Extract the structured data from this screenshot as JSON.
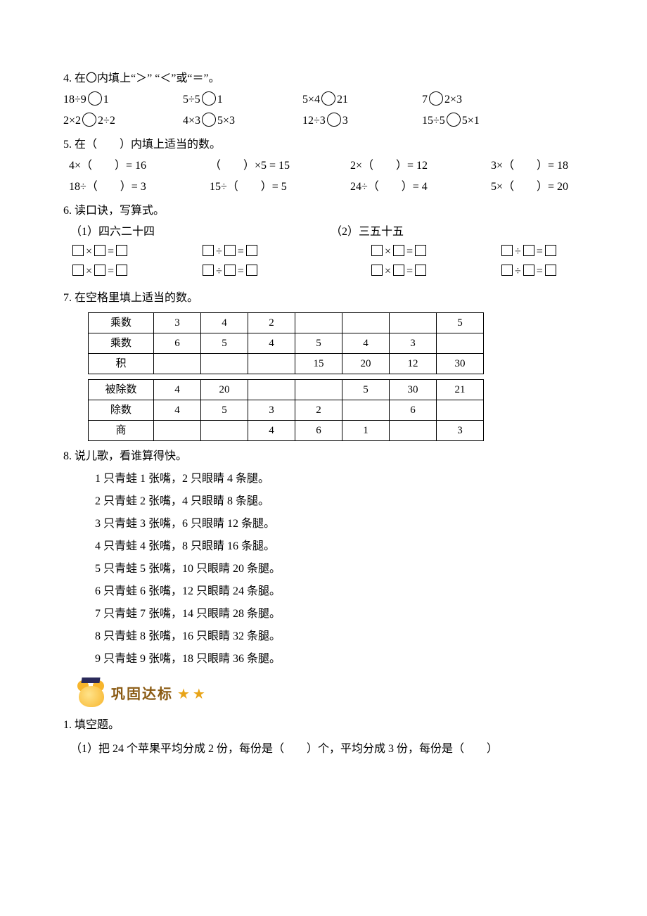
{
  "q4": {
    "title": "4. 在〇内填上“＞” “＜”或“＝”。",
    "row1": [
      "18÷9",
      "1",
      "5÷5",
      "1",
      "5×4",
      "21",
      "7",
      "2×3"
    ],
    "row2": [
      "2×2",
      "2÷2",
      "4×3",
      "5×3",
      "12÷3",
      "3",
      "15÷5",
      "5×1"
    ]
  },
  "q5": {
    "title": "5. 在（　　）内填上适当的数。",
    "r1": [
      "4×（　　）= 16",
      "（　　）×5 = 15",
      "2×（　　）= 12",
      "3×（　　）= 18"
    ],
    "r2": [
      "18÷（　　）= 3",
      "15÷（　　）= 5",
      "24÷（　　）= 4",
      "5×（　　）= 20"
    ]
  },
  "q6": {
    "title": "6. 读口诀，写算式。",
    "left_label": "（1）四六二十四",
    "right_label": "（2）三五十五"
  },
  "q7": {
    "title": "7. 在空格里填上适当的数。",
    "top": {
      "rows": [
        [
          "乘数",
          "3",
          "4",
          "2",
          "",
          "",
          "",
          "5"
        ],
        [
          "乘数",
          "6",
          "5",
          "4",
          "5",
          "4",
          "3",
          ""
        ],
        [
          "积",
          "",
          "",
          "",
          "15",
          "20",
          "12",
          "30"
        ]
      ]
    },
    "bottom": {
      "rows": [
        [
          "被除数",
          "4",
          "20",
          "",
          "",
          "5",
          "30",
          "21"
        ],
        [
          "除数",
          "4",
          "5",
          "3",
          "2",
          "",
          "6",
          ""
        ],
        [
          "商",
          "",
          "",
          "4",
          "6",
          "1",
          "",
          "3"
        ]
      ]
    }
  },
  "q8": {
    "title": "8. 说儿歌，看谁算得快。",
    "lines": [
      "1 只青蛙 1 张嘴，2 只眼睛 4 条腿。",
      "2 只青蛙 2 张嘴，4 只眼睛 8 条腿。",
      "3 只青蛙 3 张嘴，6 只眼睛 12 条腿。",
      "4 只青蛙 4 张嘴，8 只眼睛 16 条腿。",
      "5 只青蛙 5 张嘴，10 只眼睛 20 条腿。",
      "6 只青蛙 6 张嘴，12 只眼睛 24 条腿。",
      "7 只青蛙 7 张嘴，14 只眼睛 28 条腿。",
      "8 只青蛙 8 张嘴，16 只眼睛 32 条腿。",
      "9 只青蛙 9 张嘴，18 只眼睛 36 条腿。"
    ]
  },
  "badge": {
    "text": "巩固达标",
    "stars": "★★"
  },
  "sec2": {
    "q1": "1. 填空题。",
    "q1_1": "（1）把 24 个苹果平均分成 2 份，每份是（　　）个，平均分成 3 份，每份是（　　）"
  }
}
